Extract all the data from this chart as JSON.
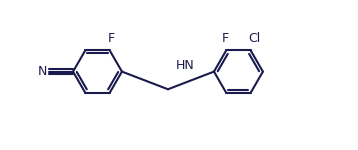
{
  "bg_color": "#ffffff",
  "line_color": "#1a1a4e",
  "line_width": 1.5,
  "font_size": 9,
  "font_color": "#1a1a4e",
  "figsize": [
    3.58,
    1.5
  ],
  "dpi": 100,
  "xlim": [
    0,
    10.5
  ],
  "ylim": [
    0.2,
    4.0
  ]
}
